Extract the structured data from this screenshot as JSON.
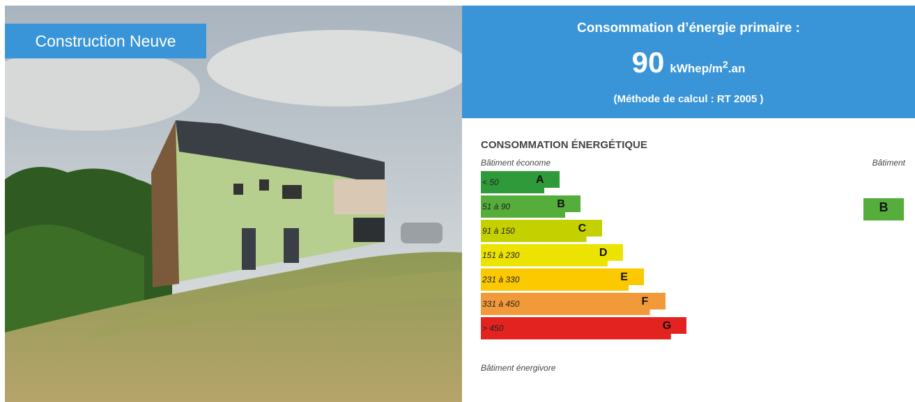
{
  "photo_badge": "Construction Neuve",
  "header": {
    "title": "Consommation d’énergie primaire :",
    "value": 90,
    "unit": "kWhep/m",
    "unit_sup": "2",
    "unit_suffix": ".an",
    "method": "(Méthode de calcul : RT 2005 )"
  },
  "label": {
    "title": "CONSOMMATION ÉNERGÉTIQUE",
    "top_left": "Bâtiment économe",
    "top_right": "Bâtiment",
    "bottom": "Bâtiment énergivore",
    "classes": [
      {
        "range": "< 50",
        "letter": "A",
        "color": "#2f9a3a"
      },
      {
        "range": "51 à 90",
        "letter": "B",
        "color": "#55ad3b"
      },
      {
        "range": "91 à 150",
        "letter": "C",
        "color": "#c5d000"
      },
      {
        "range": "151 à 230",
        "letter": "D",
        "color": "#ede300"
      },
      {
        "range": "231 à 330",
        "letter": "E",
        "color": "#fcc800"
      },
      {
        "range": "331 à 450",
        "letter": "F",
        "color": "#f29a39"
      },
      {
        "range": "> 450",
        "letter": "G",
        "color": "#e3231f"
      }
    ],
    "current": "B"
  }
}
